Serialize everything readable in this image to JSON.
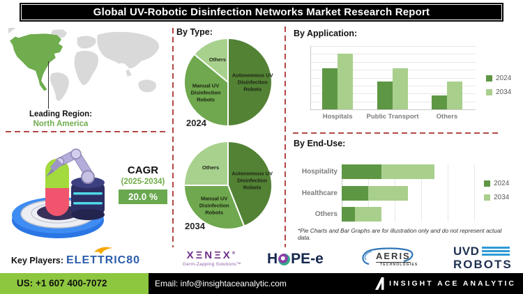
{
  "title": "Global UV-Robotic Disinfection Networks Market Research Report",
  "map": {
    "leading_region_label": "Leading Region:",
    "leading_region_value": "North America"
  },
  "cagr": {
    "label": "CAGR",
    "period": "(2025-2034)",
    "value": "20.0 %"
  },
  "sections": {
    "by_type": "By Type:",
    "by_application": "By Application:",
    "by_end_use": "By End-Use:"
  },
  "note": "*Pie Charts and Bar Graphs are for illustration only and do not represent actual data.",
  "colors": {
    "dashed_red": "#b14743",
    "map_gray": "#d9d9d9",
    "map_green": "#6fad4e",
    "footer_green": "#8dc63f",
    "cagr_green": "#6aa84f",
    "pie_dark_green": "#538235",
    "pie_mid_green": "#6fa84e",
    "pie_light_green": "#a9d18e",
    "bar_2024_green": "#5e9744",
    "bar_2034_green": "#a9cf8d",
    "xenex_purple": "#702f8a",
    "elettric_blue": "#2a5caa",
    "uvd_blue": "#2e9bd6",
    "aeris_blue": "#2e75b6"
  },
  "chart_data": [
    {
      "type": "pie",
      "id": "by-type-2024",
      "year_label": "2024",
      "labels": [
        "Autonomous UV Disinfection Robots",
        "Manual UV Disinfection Robots",
        "Others"
      ],
      "values": [
        50,
        36,
        14
      ],
      "colors": [
        "#538235",
        "#6fa84e",
        "#a9d18e"
      ]
    },
    {
      "type": "pie",
      "id": "by-type-2034",
      "year_label": "2034",
      "labels": [
        "Autonomous UV Disinfection Robots",
        "Manual UV Disinfection Robots",
        "Others"
      ],
      "values": [
        44,
        31,
        25
      ],
      "colors": [
        "#538235",
        "#6fa84e",
        "#a9d18e"
      ]
    },
    {
      "type": "bar",
      "id": "by-application",
      "title": "By Application:",
      "categories": [
        "Hospitals",
        "Public Transport",
        "Others"
      ],
      "series": [
        {
          "name": "2024",
          "color": "#5e9744",
          "values": [
            5.2,
            3.5,
            1.75
          ]
        },
        {
          "name": "2034",
          "color": "#a9cf8d",
          "values": [
            7.0,
            5.2,
            3.5
          ]
        }
      ],
      "ylim": [
        0,
        8
      ],
      "gridlines": true,
      "legend_position": "right"
    },
    {
      "type": "bar-horizontal-stacked",
      "id": "by-end-use",
      "title": "By End-Use:",
      "categories": [
        "Hospitality",
        "Healthcare",
        "Others"
      ],
      "series": [
        {
          "name": "2024",
          "color": "#5e9744",
          "values": [
            1.5,
            1.0,
            0.5
          ]
        },
        {
          "name": "2034",
          "color": "#a9cf8d",
          "values": [
            2.0,
            1.5,
            1.0
          ]
        }
      ],
      "xlim": [
        0,
        5
      ],
      "gridlines": true,
      "legend_position": "right"
    }
  ],
  "key_players": {
    "label": "Key Players:",
    "elettric80": "ELETTRIC80",
    "xenex": "XΞNΞX",
    "xenex_reg": "®",
    "xenex_tagline": "Germ-Zapping Solutions™",
    "hope_left": "H",
    "hope_right": "PE-e",
    "aeris": "AERIS",
    "aeris_sub": "TECHNOLOGIES",
    "uvd_line1": "UVD",
    "uvd_line2": "ROBOTS"
  },
  "footer": {
    "phone": "US: +1 607 400-7072",
    "email": "Email: info@insightaceanalytic.com",
    "brand": "INSIGHT ACE ANALYTIC"
  }
}
